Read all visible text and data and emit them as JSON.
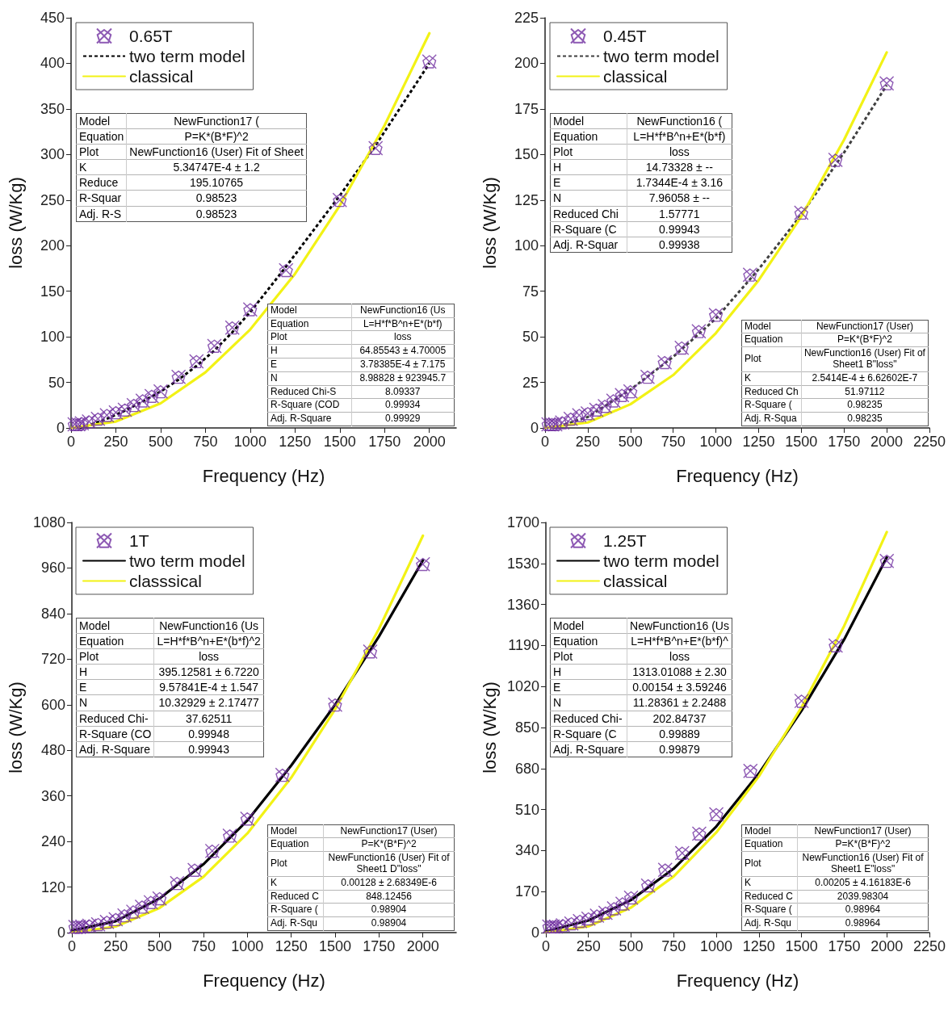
{
  "chart_data": [
    {
      "type": "scatter",
      "xlabel": "Frequency (Hz)",
      "ylabel": "loss (W/Kg)",
      "xlim": [
        0,
        2150
      ],
      "xticks": [
        0,
        250,
        500,
        750,
        1000,
        1250,
        1500,
        1750,
        2000
      ],
      "ylim": [
        0,
        450
      ],
      "yticks": [
        0,
        50,
        100,
        150,
        200,
        250,
        300,
        350,
        400,
        450
      ],
      "legend": "top left",
      "series": [
        {
          "name": "0.65T",
          "type": "scatter",
          "marker": "cross",
          "color": "#7030a0",
          "x": [
            20,
            40,
            60,
            100,
            150,
            200,
            250,
            300,
            350,
            400,
            450,
            500,
            600,
            700,
            800,
            900,
            1000,
            1200,
            1500,
            1700,
            2000
          ],
          "values": [
            4,
            4,
            5,
            7,
            10,
            14,
            17,
            20,
            25,
            30,
            35,
            40,
            56,
            73,
            90,
            110,
            130,
            173,
            250,
            307,
            402
          ]
        },
        {
          "name": "two term model",
          "type": "line",
          "line_style": "dashed",
          "color": "#000000",
          "x": [
            50,
            100,
            200,
            300,
            400,
            500,
            600,
            700,
            800,
            900,
            1000,
            1200,
            1500,
            1700,
            2000
          ],
          "values": [
            0,
            3,
            10,
            19,
            29,
            40,
            53,
            68,
            85,
            105,
            127,
            177,
            255,
            310,
            400
          ]
        },
        {
          "name": "classical",
          "type": "line",
          "line_style": "solid",
          "color": "#f2f215",
          "x": [
            0,
            250,
            500,
            750,
            1000,
            1250,
            1500,
            1750,
            2000
          ],
          "values": [
            0,
            7,
            27,
            61,
            108,
            169,
            244,
            332,
            433
          ]
        }
      ],
      "annotations": [
        "Model\tNewFunction17 (\nEquation\tP=K*(B*F)^2\nPlot\tNewFunction16 (User) Fit of Sheet\nK\t5.34747E-4 ± 1.2\nReduce\t195.10765\nR-Squar\t0.98523\nAdj. R-S\t0.98523",
        "Model\tNewFunction16 (Us\nEquation\tL=H*f*B^n+E*(b*f)\nPlot\tloss\nH\t64.85543 ± 4.70005\nE\t3.78385E-4 ± 7.175\nN\t8.98828 ± 923945.7\nReduced Chi-S\t8.09337\nR-Square (COD\t0.99934\nAdj. R-Square\t0.99929"
      ]
    },
    {
      "type": "scatter",
      "xlabel": "Frequency (Hz)",
      "ylabel": "loss (W/Kg)",
      "xlim": [
        0,
        2250
      ],
      "xticks": [
        0,
        250,
        500,
        750,
        1000,
        1250,
        1500,
        1750,
        2000,
        2250
      ],
      "ylim": [
        0,
        225
      ],
      "yticks": [
        0,
        25,
        50,
        75,
        100,
        125,
        150,
        175,
        200,
        225
      ],
      "legend": "top left",
      "series": [
        {
          "name": "0.45T",
          "type": "scatter",
          "marker": "cross",
          "color": "#7030a0",
          "x": [
            20,
            40,
            60,
            100,
            150,
            200,
            250,
            300,
            350,
            400,
            450,
            500,
            600,
            700,
            800,
            900,
            1000,
            1200,
            1500,
            1700,
            2000
          ],
          "values": [
            2,
            2,
            2,
            3,
            5,
            7,
            8,
            10,
            12,
            15,
            18,
            20,
            28,
            36,
            44,
            53,
            62,
            84,
            118,
            147,
            189
          ]
        },
        {
          "name": "two term model",
          "type": "line",
          "line_style": "dashed",
          "color": "#404040",
          "x": [
            50,
            250,
            500,
            750,
            1000,
            1250,
            1500,
            1750,
            2000
          ],
          "values": [
            0,
            6,
            21,
            39,
            60,
            87,
            117,
            151,
            188
          ]
        },
        {
          "name": "classical",
          "type": "line",
          "line_style": "solid",
          "color": "#f2f215",
          "x": [
            0,
            250,
            500,
            750,
            1000,
            1250,
            1500,
            1750,
            2000
          ],
          "values": [
            0,
            3,
            13,
            29,
            52,
            81,
            116,
            158,
            206
          ]
        }
      ],
      "annotations": [
        "Model\tNewFunction16 (\nEquation\tL=H*f*B^n+E*(b*f)\nPlot\tloss\nH\t14.73328 ± --\nE\t1.7344E-4 ± 3.16\nN\t7.96058 ± --\nReduced Chi\t1.57771\nR-Square (C\t0.99943\nAdj. R-Squar\t0.99938",
        "Model\tNewFunction17 (User)\nEquation\tP=K*(B*F)^2\nPlot\tNewFunction16 (User) Fit of Sheet1 B\"loss\"\nK\t2.5414E-4 ± 6.62602E-7\nReduced Ch\t51.97112\nR-Square (\t0.98235\nAdj. R-Squa\t0.98235"
      ]
    },
    {
      "type": "scatter",
      "xlabel": "Frequency (Hz)",
      "ylabel": "loss (W/Kg)",
      "xlim": [
        0,
        2190
      ],
      "xticks": [
        0,
        250,
        500,
        750,
        1000,
        1250,
        1500,
        1750,
        2000
      ],
      "ylim": [
        0,
        1080
      ],
      "yticks": [
        0,
        120,
        240,
        360,
        480,
        600,
        720,
        840,
        960,
        1080
      ],
      "legend": "top left",
      "series": [
        {
          "name": "1T",
          "type": "scatter",
          "marker": "cross",
          "color": "#7030a0",
          "x": [
            20,
            40,
            60,
            100,
            150,
            200,
            250,
            300,
            350,
            400,
            450,
            500,
            600,
            700,
            800,
            900,
            1000,
            1200,
            1500,
            1700,
            2000
          ],
          "values": [
            15,
            15,
            16,
            18,
            22,
            28,
            35,
            45,
            55,
            68,
            80,
            90,
            130,
            165,
            215,
            255,
            300,
            415,
            600,
            740,
            970
          ]
        },
        {
          "name": "two term model",
          "type": "line",
          "line_style": "solid",
          "color": "#000000",
          "x": [
            0,
            250,
            500,
            750,
            1000,
            1250,
            1500,
            1750,
            2000
          ],
          "values": [
            5,
            30,
            90,
            180,
            295,
            440,
            600,
            780,
            980
          ]
        },
        {
          "name": "classsical",
          "type": "line",
          "line_style": "solid",
          "color": "#f2f215",
          "x": [
            0,
            250,
            500,
            750,
            1000,
            1250,
            1500,
            1750,
            2000
          ],
          "values": [
            0,
            16,
            65,
            147,
            261,
            408,
            588,
            800,
            1045
          ]
        }
      ],
      "annotations": [
        "Model\tNewFunction16 (Us\nEquation\tL=H*f*B^n+E*(b*f)^2\nPlot\tloss\nH\t395.12581 ± 6.7220\nE\t9.57841E-4 ± 1.547\nN\t10.32929 ± 2.17477\nReduced Chi-\t37.62511\nR-Square (CO\t0.99948\nAdj. R-Square\t0.99943",
        "Model\tNewFunction17 (User)\nEquation\tP=K*(B*F)^2\nPlot\tNewFunction16 (User) Fit of Sheet1 D\"loss\"\nK\t0.00128 ± 2.68349E-6\nReduced C\t848.12456\nR-Square (\t0.98904\nAdj. R-Squ\t0.98904"
      ]
    },
    {
      "type": "scatter",
      "xlabel": "Frequency (Hz)",
      "ylabel": "loss (W/Kg)",
      "xlim": [
        0,
        2250
      ],
      "xticks": [
        0,
        250,
        500,
        750,
        1000,
        1250,
        1500,
        1750,
        2000,
        2250
      ],
      "ylim": [
        0,
        1700
      ],
      "yticks": [
        0,
        170,
        340,
        510,
        680,
        850,
        1020,
        1190,
        1360,
        1530,
        1700
      ],
      "legend": "top left",
      "series": [
        {
          "name": "1.25T",
          "type": "scatter",
          "marker": "cross",
          "color": "#7030a0",
          "x": [
            20,
            40,
            60,
            100,
            150,
            200,
            250,
            300,
            350,
            400,
            450,
            500,
            600,
            700,
            800,
            900,
            1000,
            1200,
            1500,
            1700,
            2000
          ],
          "values": [
            25,
            25,
            25,
            30,
            38,
            48,
            58,
            70,
            82,
            100,
            120,
            145,
            195,
            260,
            330,
            410,
            490,
            670,
            960,
            1190,
            1540
          ]
        },
        {
          "name": "two term model",
          "type": "line",
          "line_style": "solid",
          "color": "#000000",
          "x": [
            0,
            250,
            500,
            750,
            1000,
            1250,
            1500,
            1750,
            2000
          ],
          "values": [
            5,
            50,
            135,
            265,
            440,
            660,
            920,
            1215,
            1555
          ]
        },
        {
          "name": "classical",
          "type": "line",
          "line_style": "solid",
          "color": "#f2f215",
          "x": [
            0,
            250,
            500,
            750,
            1000,
            1250,
            1500,
            1750,
            2000
          ],
          "values": [
            0,
            26,
            104,
            233,
            415,
            648,
            934,
            1271,
            1660
          ]
        }
      ],
      "annotations": [
        "Model\tNewFunction16 (Us\nEquation\tL=H*f*B^n+E*(b*f)^\nPlot\tloss\nH\t1313.01088 ± 2.30\nE\t0.00154 ± 3.59246\nN\t11.28361 ± 2.2488\nReduced Chi-\t202.84737\nR-Square (C\t0.99889\nAdj. R-Square\t0.99879",
        "Model\tNewFunction17 (User)\nEquation\tP=K*(B*F)^2\nPlot\tNewFunction16 (User) Fit of Sheet1 E\"loss\"\nK\t0.00205 ± 4.16183E-6\nReduced C\t2039.98304\nR-Square (\t0.98964\nAdj. R-Squ\t0.98964"
      ]
    }
  ]
}
